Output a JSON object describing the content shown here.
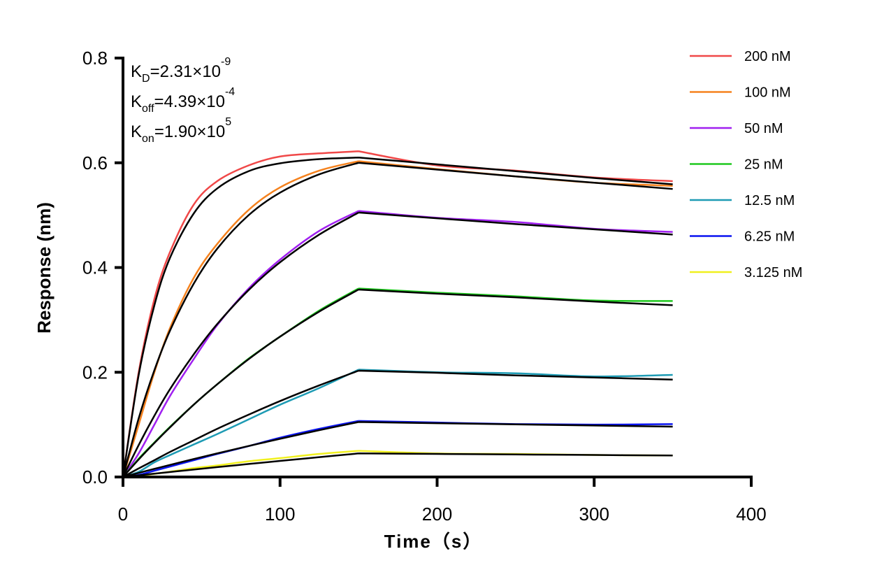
{
  "chart_data": {
    "type": "line",
    "title": "",
    "xlabel": "Time（s）",
    "ylabel": "Response (nm)",
    "xlim": [
      0,
      400
    ],
    "ylim": [
      0,
      0.8
    ],
    "xticks": [
      "0",
      "100",
      "200",
      "300",
      "400"
    ],
    "yticks": [
      "0.0",
      "0.2",
      "0.4",
      "0.6",
      "0.8"
    ],
    "grid": false,
    "legend_position": "right",
    "annotations": [
      {
        "symbol": "K",
        "sub": "D",
        "value": "=2.31×10",
        "exp": "-9"
      },
      {
        "symbol": "K",
        "sub": "off",
        "value": "=4.39×10",
        "exp": "-4"
      },
      {
        "symbol": "K",
        "sub": "on",
        "value": "=1.90×10",
        "exp": "5"
      }
    ],
    "fit_color": "#000000",
    "x": [
      0,
      10,
      20,
      30,
      45,
      60,
      80,
      100,
      125,
      150,
      200,
      250,
      300,
      350
    ],
    "series": [
      {
        "name": "200 nM",
        "color": "#f04848",
        "measured": [
          0,
          0.2,
          0.34,
          0.43,
          0.52,
          0.565,
          0.595,
          0.612,
          0.618,
          0.622,
          0.595,
          0.585,
          0.572,
          0.565
        ],
        "fit": [
          0,
          0.195,
          0.328,
          0.419,
          0.503,
          0.551,
          0.584,
          0.599,
          0.607,
          0.61,
          0.597,
          0.584,
          0.571,
          0.559
        ]
      },
      {
        "name": "100 nM",
        "color": "#f5821e",
        "measured": [
          0,
          0.1,
          0.2,
          0.285,
          0.38,
          0.445,
          0.51,
          0.553,
          0.585,
          0.603,
          0.588,
          0.574,
          0.562,
          0.556
        ],
        "fit": [
          0,
          0.112,
          0.204,
          0.28,
          0.369,
          0.436,
          0.5,
          0.543,
          0.578,
          0.6,
          0.587,
          0.574,
          0.562,
          0.55
        ]
      },
      {
        "name": "50 nM",
        "color": "#a020f0",
        "measured": [
          0,
          0.045,
          0.1,
          0.155,
          0.225,
          0.29,
          0.36,
          0.415,
          0.47,
          0.508,
          0.495,
          0.487,
          0.474,
          0.468
        ],
        "fit": [
          0,
          0.061,
          0.117,
          0.168,
          0.234,
          0.292,
          0.357,
          0.41,
          0.463,
          0.505,
          0.494,
          0.483,
          0.473,
          0.463
        ]
      },
      {
        "name": "25 nM",
        "color": "#1ec81e",
        "measured": [
          0,
          0.035,
          0.066,
          0.096,
          0.138,
          0.177,
          0.226,
          0.268,
          0.318,
          0.36,
          0.352,
          0.345,
          0.337,
          0.336
        ],
        "fit": [
          0,
          0.0335,
          0.065,
          0.095,
          0.138,
          0.177,
          0.225,
          0.268,
          0.316,
          0.358,
          0.35,
          0.343,
          0.335,
          0.328
        ]
      },
      {
        "name": "12.5 nM",
        "color": "#1e9bb4",
        "measured": [
          0,
          0.01,
          0.028,
          0.042,
          0.062,
          0.082,
          0.11,
          0.138,
          0.17,
          0.205,
          0.2,
          0.198,
          0.192,
          0.195
        ],
        "fit": [
          0,
          0.0164,
          0.032,
          0.048,
          0.07,
          0.092,
          0.119,
          0.145,
          0.175,
          0.203,
          0.199,
          0.194,
          0.19,
          0.186
        ]
      },
      {
        "name": "6.25 nM",
        "color": "#0a14f0",
        "measured": [
          0,
          0.004,
          0.012,
          0.02,
          0.032,
          0.044,
          0.059,
          0.075,
          0.092,
          0.107,
          0.104,
          0.101,
          0.1,
          0.101
        ],
        "fit": [
          0,
          0.0078,
          0.0156,
          0.0231,
          0.0343,
          0.0451,
          0.0592,
          0.0729,
          0.0894,
          0.105,
          0.1027,
          0.1005,
          0.0983,
          0.0962
        ]
      },
      {
        "name": "3.125 nM",
        "color": "#f0f01e",
        "measured": [
          0,
          0.002,
          0.006,
          0.01,
          0.017,
          0.022,
          0.03,
          0.036,
          0.044,
          0.05,
          0.045,
          0.044,
          0.042,
          0.041
        ],
        "fit": [
          0,
          0.0032,
          0.0064,
          0.0095,
          0.0142,
          0.0188,
          0.0248,
          0.0307,
          0.0379,
          0.045,
          0.044,
          0.043,
          0.042,
          0.041
        ]
      }
    ]
  }
}
